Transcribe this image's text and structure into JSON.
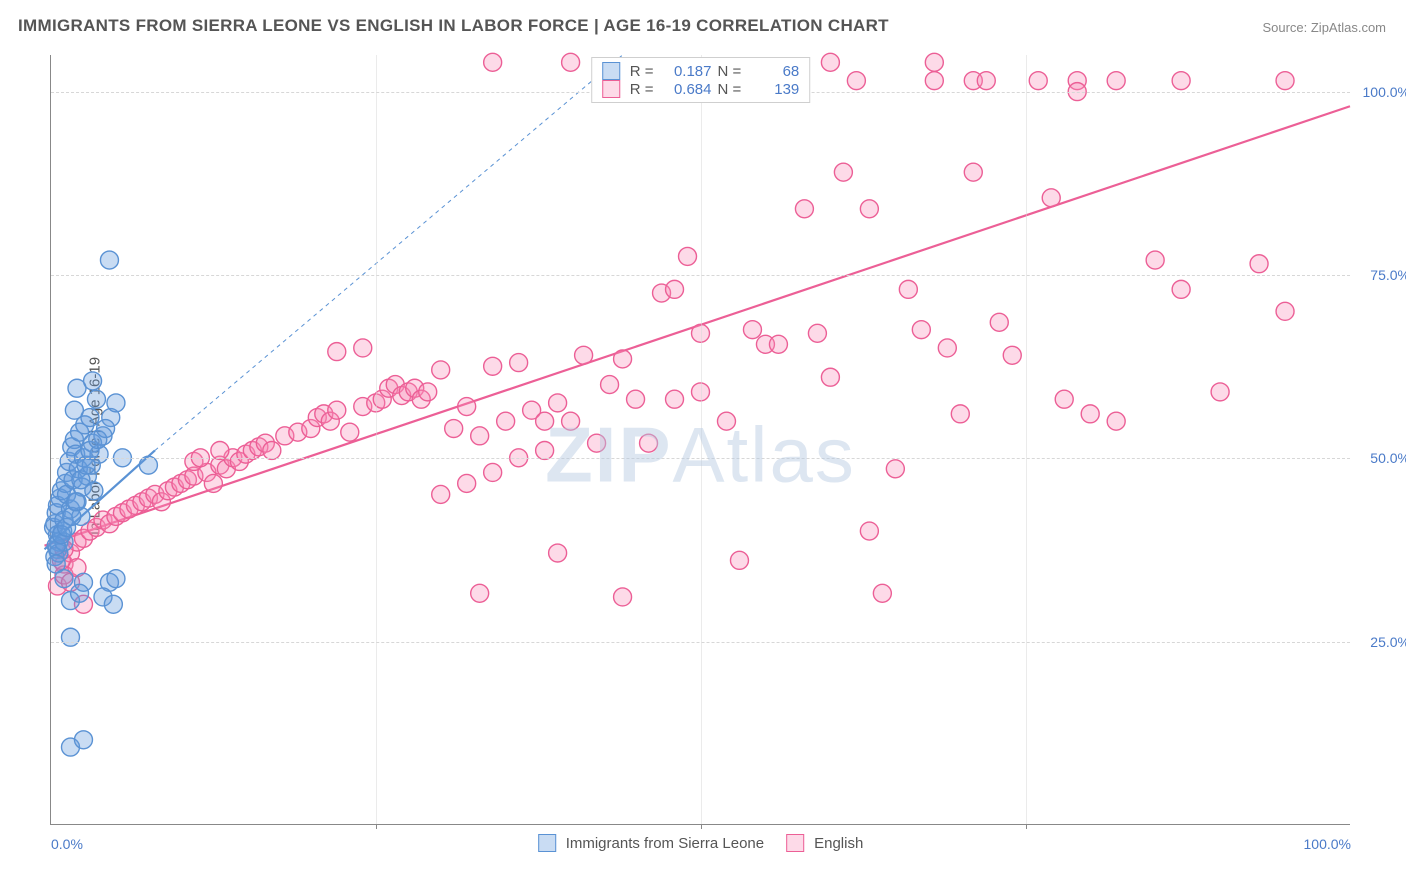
{
  "title": "IMMIGRANTS FROM SIERRA LEONE VS ENGLISH IN LABOR FORCE | AGE 16-19 CORRELATION CHART",
  "source": "Source: ZipAtlas.com",
  "y_axis_label": "In Labor Force | Age 16-19",
  "watermark": {
    "bold": "ZIP",
    "rest": "Atlas"
  },
  "chart": {
    "type": "scatter",
    "xlim": [
      0,
      100
    ],
    "ylim": [
      0,
      105
    ],
    "y_ticks": [
      25,
      50,
      75,
      100
    ],
    "y_tick_labels": [
      "25.0%",
      "50.0%",
      "75.0%",
      "100.0%"
    ],
    "x_ticks": [
      0,
      25,
      50,
      75,
      100
    ],
    "x_tick_marks": [
      0,
      25,
      50,
      75,
      100
    ],
    "x_tick_labels_shown": {
      "0": "0.0%",
      "100": "100.0%"
    },
    "grid_color": "#d7d7d7",
    "background_color": "#ffffff",
    "tick_label_color": "#4a7ac8",
    "marker_radius": 9,
    "marker_stroke_width": 1.4,
    "series": [
      {
        "key": "sierra_leone",
        "label": "Immigrants from Sierra Leone",
        "fill": "rgba(99, 155, 222, 0.35)",
        "stroke": "#5a92d4",
        "r_value": "0.187",
        "n_value": "68",
        "trend": {
          "x1": -0.5,
          "y1": 37.5,
          "x2": 8,
          "y2": 51,
          "width": 2.2
        },
        "trend_dashed": {
          "x1": 8,
          "y1": 51,
          "x2": 44,
          "y2": 105,
          "width": 1,
          "dash": "4,4"
        },
        "points": [
          [
            0.2,
            40.5
          ],
          [
            0.3,
            41
          ],
          [
            0.4,
            42.5
          ],
          [
            0.5,
            39.5
          ],
          [
            0.5,
            43.5
          ],
          [
            0.7,
            44.5
          ],
          [
            0.6,
            38.5
          ],
          [
            0.8,
            45.5
          ],
          [
            0.9,
            40
          ],
          [
            1,
            41.5
          ],
          [
            1.1,
            46.5
          ],
          [
            1.2,
            45
          ],
          [
            1.2,
            48
          ],
          [
            1.4,
            49.5
          ],
          [
            1.5,
            43
          ],
          [
            1.6,
            51.5
          ],
          [
            1.7,
            47
          ],
          [
            1.8,
            52.5
          ],
          [
            1.9,
            50.5
          ],
          [
            2,
            44
          ],
          [
            2.1,
            48.5
          ],
          [
            2.2,
            53.5
          ],
          [
            2.3,
            42
          ],
          [
            2.4,
            46
          ],
          [
            2.5,
            50
          ],
          [
            2.6,
            54.5
          ],
          [
            2.8,
            47.5
          ],
          [
            3,
            55.5
          ],
          [
            3.1,
            49
          ],
          [
            3.2,
            52
          ],
          [
            3.3,
            45.5
          ],
          [
            3.5,
            58
          ],
          [
            3.7,
            50.5
          ],
          [
            4,
            53
          ],
          [
            4.6,
            55.5
          ],
          [
            5,
            57.5
          ],
          [
            5.5,
            50
          ],
          [
            7.5,
            49
          ],
          [
            0.5,
            37.5
          ],
          [
            0.3,
            36.5
          ],
          [
            0.6,
            37
          ],
          [
            0.4,
            35.5
          ],
          [
            1,
            38.5
          ],
          [
            2,
            59.5
          ],
          [
            3.2,
            60.5
          ],
          [
            1.8,
            56.5
          ],
          [
            1,
            33.5
          ],
          [
            2.5,
            33
          ],
          [
            4.5,
            33
          ],
          [
            5,
            33.5
          ],
          [
            1.5,
            30.5
          ],
          [
            2.2,
            31.5
          ],
          [
            4,
            31
          ],
          [
            4.8,
            30
          ],
          [
            1.5,
            25.5
          ],
          [
            4.5,
            77
          ],
          [
            1.5,
            10.5
          ],
          [
            2.5,
            11.5
          ],
          [
            0.4,
            38
          ],
          [
            0.8,
            39.5
          ],
          [
            1.2,
            40.5
          ],
          [
            1.6,
            42
          ],
          [
            1.9,
            44
          ],
          [
            2.3,
            47
          ],
          [
            2.7,
            49
          ],
          [
            3,
            51
          ],
          [
            3.6,
            52.5
          ],
          [
            4.2,
            54
          ]
        ]
      },
      {
        "key": "english",
        "label": "English",
        "fill": "rgba(249, 140, 182, 0.32)",
        "stroke": "#ec5f96",
        "r_value": "0.684",
        "n_value": "139",
        "trend": {
          "x1": -0.5,
          "y1": 38,
          "x2": 100,
          "y2": 98,
          "width": 2.2
        },
        "points": [
          [
            1,
            35.5
          ],
          [
            1.5,
            37
          ],
          [
            2,
            38.5
          ],
          [
            2.5,
            39
          ],
          [
            3,
            40
          ],
          [
            3.5,
            40.5
          ],
          [
            4,
            41.5
          ],
          [
            4.5,
            41
          ],
          [
            5,
            42
          ],
          [
            5.5,
            42.5
          ],
          [
            6,
            43
          ],
          [
            6.5,
            43.5
          ],
          [
            7,
            44
          ],
          [
            7.5,
            44.5
          ],
          [
            8,
            45
          ],
          [
            8.5,
            44
          ],
          [
            9,
            45.5
          ],
          [
            9.5,
            46
          ],
          [
            10,
            46.5
          ],
          [
            10.5,
            47
          ],
          [
            11,
            47.5
          ],
          [
            12,
            48
          ],
          [
            12.5,
            46.5
          ],
          [
            13,
            49
          ],
          [
            13.5,
            48.5
          ],
          [
            14,
            50
          ],
          [
            14.5,
            49.5
          ],
          [
            15,
            50.5
          ],
          [
            15.5,
            51
          ],
          [
            16,
            51.5
          ],
          [
            16.5,
            52
          ],
          [
            17,
            51
          ],
          [
            18,
            53
          ],
          [
            19,
            53.5
          ],
          [
            20,
            54
          ],
          [
            20.5,
            55.5
          ],
          [
            21,
            56
          ],
          [
            21.5,
            55
          ],
          [
            22,
            56.5
          ],
          [
            23,
            53.5
          ],
          [
            24,
            57
          ],
          [
            25,
            57.5
          ],
          [
            25.5,
            58
          ],
          [
            26,
            59.5
          ],
          [
            26.5,
            60
          ],
          [
            27,
            58.5
          ],
          [
            27.5,
            59
          ],
          [
            28,
            59.5
          ],
          [
            28.5,
            58
          ],
          [
            29,
            59
          ],
          [
            30,
            62
          ],
          [
            31,
            54
          ],
          [
            32,
            57
          ],
          [
            33,
            53
          ],
          [
            34,
            62.5
          ],
          [
            35,
            55
          ],
          [
            36,
            63
          ],
          [
            37,
            56.5
          ],
          [
            38,
            51
          ],
          [
            39,
            57.5
          ],
          [
            40,
            55
          ],
          [
            41,
            64
          ],
          [
            42,
            52
          ],
          [
            43,
            60
          ],
          [
            44,
            63.5
          ],
          [
            45,
            58
          ],
          [
            39,
            37
          ],
          [
            47,
            72.5
          ],
          [
            48,
            73
          ],
          [
            46,
            52
          ],
          [
            49,
            77.5
          ],
          [
            50,
            67
          ],
          [
            51,
            101.5
          ],
          [
            52,
            55
          ],
          [
            52,
            101.5
          ],
          [
            53,
            36
          ],
          [
            54,
            67.5
          ],
          [
            55,
            65.5
          ],
          [
            55,
            101.5
          ],
          [
            56,
            65.5
          ],
          [
            57,
            101.5
          ],
          [
            58,
            84
          ],
          [
            59,
            67
          ],
          [
            60,
            61
          ],
          [
            61,
            89
          ],
          [
            62,
            101.5
          ],
          [
            63,
            84
          ],
          [
            63,
            40
          ],
          [
            64,
            31.5
          ],
          [
            65,
            48.5
          ],
          [
            66,
            73
          ],
          [
            67,
            67.5
          ],
          [
            68,
            101.5
          ],
          [
            69,
            65
          ],
          [
            70,
            56
          ],
          [
            33,
            31.5
          ],
          [
            44,
            31
          ],
          [
            71,
            101.5
          ],
          [
            72,
            101.5
          ],
          [
            76,
            101.5
          ],
          [
            79,
            101.5
          ],
          [
            82,
            101.5
          ],
          [
            87,
            101.5
          ],
          [
            95,
            101.5
          ],
          [
            71,
            89
          ],
          [
            73,
            68.5
          ],
          [
            74,
            64
          ],
          [
            77,
            85.5
          ],
          [
            78,
            58
          ],
          [
            79,
            100
          ],
          [
            80,
            56
          ],
          [
            82,
            55
          ],
          [
            85,
            77
          ],
          [
            87,
            73
          ],
          [
            90,
            59
          ],
          [
            93,
            76.5
          ],
          [
            95,
            70
          ],
          [
            34,
            104
          ],
          [
            40,
            104
          ],
          [
            60,
            104
          ],
          [
            68,
            104
          ],
          [
            48,
            58
          ],
          [
            50,
            59
          ],
          [
            22,
            64.5
          ],
          [
            24,
            65
          ],
          [
            0.5,
            32.5
          ],
          [
            1,
            34
          ],
          [
            1.5,
            33
          ],
          [
            2,
            35
          ],
          [
            0.8,
            36
          ],
          [
            11,
            49.5
          ],
          [
            11.5,
            50
          ],
          [
            13,
            51
          ],
          [
            38,
            55
          ],
          [
            36,
            50
          ],
          [
            34,
            48
          ],
          [
            32,
            46.5
          ],
          [
            30,
            45
          ],
          [
            1,
            37.5
          ],
          [
            2.5,
            30
          ]
        ]
      }
    ]
  },
  "legend_top": {
    "r_label": "R =",
    "n_label": "N ="
  },
  "legend_bottom": [
    {
      "key": "sierra_leone"
    },
    {
      "key": "english"
    }
  ]
}
